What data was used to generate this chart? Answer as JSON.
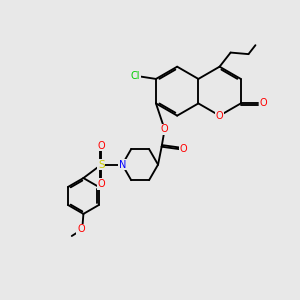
{
  "background_color": "#e8e8e8",
  "bond_color": "#000000",
  "figsize": [
    3.0,
    3.0
  ],
  "dpi": 100,
  "colors": {
    "O": "#ff0000",
    "N": "#0000ff",
    "Cl": "#00cc00",
    "S": "#cccc00"
  },
  "font_size": 7.0
}
